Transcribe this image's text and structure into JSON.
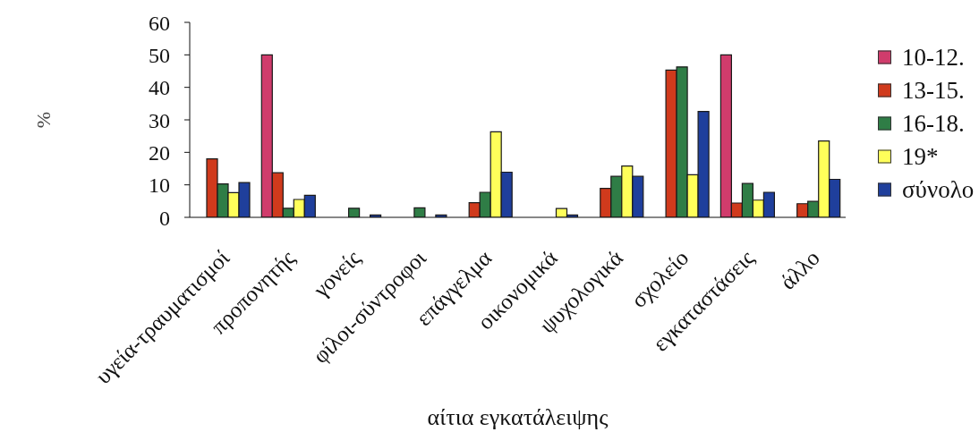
{
  "chart_data": {
    "type": "bar",
    "xlabel": "αίτια εγκατάλειψης",
    "ylabel": "%",
    "categories": [
      "υγεία-τραυματισμοί",
      "προπονητής",
      "γονείς",
      "φίλοι-σύντροφοι",
      "επάγγελμα",
      "οικονομικά",
      "ψυχολογικά",
      "σχολείο",
      "εγκαταστάσεις",
      "άλλο"
    ],
    "series": [
      {
        "name": "10-12.",
        "color": "#d03c6c",
        "values": [
          null,
          50,
          null,
          null,
          null,
          null,
          null,
          null,
          50,
          null
        ]
      },
      {
        "name": "13-15.",
        "color": "#d03a1c",
        "values": [
          18,
          13.7,
          null,
          null,
          4.5,
          null,
          8.9,
          45.3,
          4.4,
          4.2
        ]
      },
      {
        "name": "16-18.",
        "color": "#2f7d46",
        "values": [
          10.3,
          2.8,
          2.8,
          2.9,
          7.7,
          null,
          12.6,
          46.3,
          10.4,
          4.9
        ]
      },
      {
        "name": "19*",
        "color": "#ffff5a",
        "values": [
          7.6,
          5.5,
          null,
          null,
          26.3,
          2.7,
          15.8,
          13.1,
          5.3,
          23.5
        ]
      },
      {
        "name": "σύνολο",
        "color": "#1f3f9c",
        "values": [
          10.7,
          6.8,
          0.7,
          0.7,
          13.9,
          0.7,
          12.6,
          32.6,
          7.7,
          11.7
        ]
      }
    ],
    "ylim": [
      0,
      60
    ],
    "yticks": [
      0,
      10,
      20,
      30,
      40,
      50,
      60
    ],
    "legend": "right"
  }
}
